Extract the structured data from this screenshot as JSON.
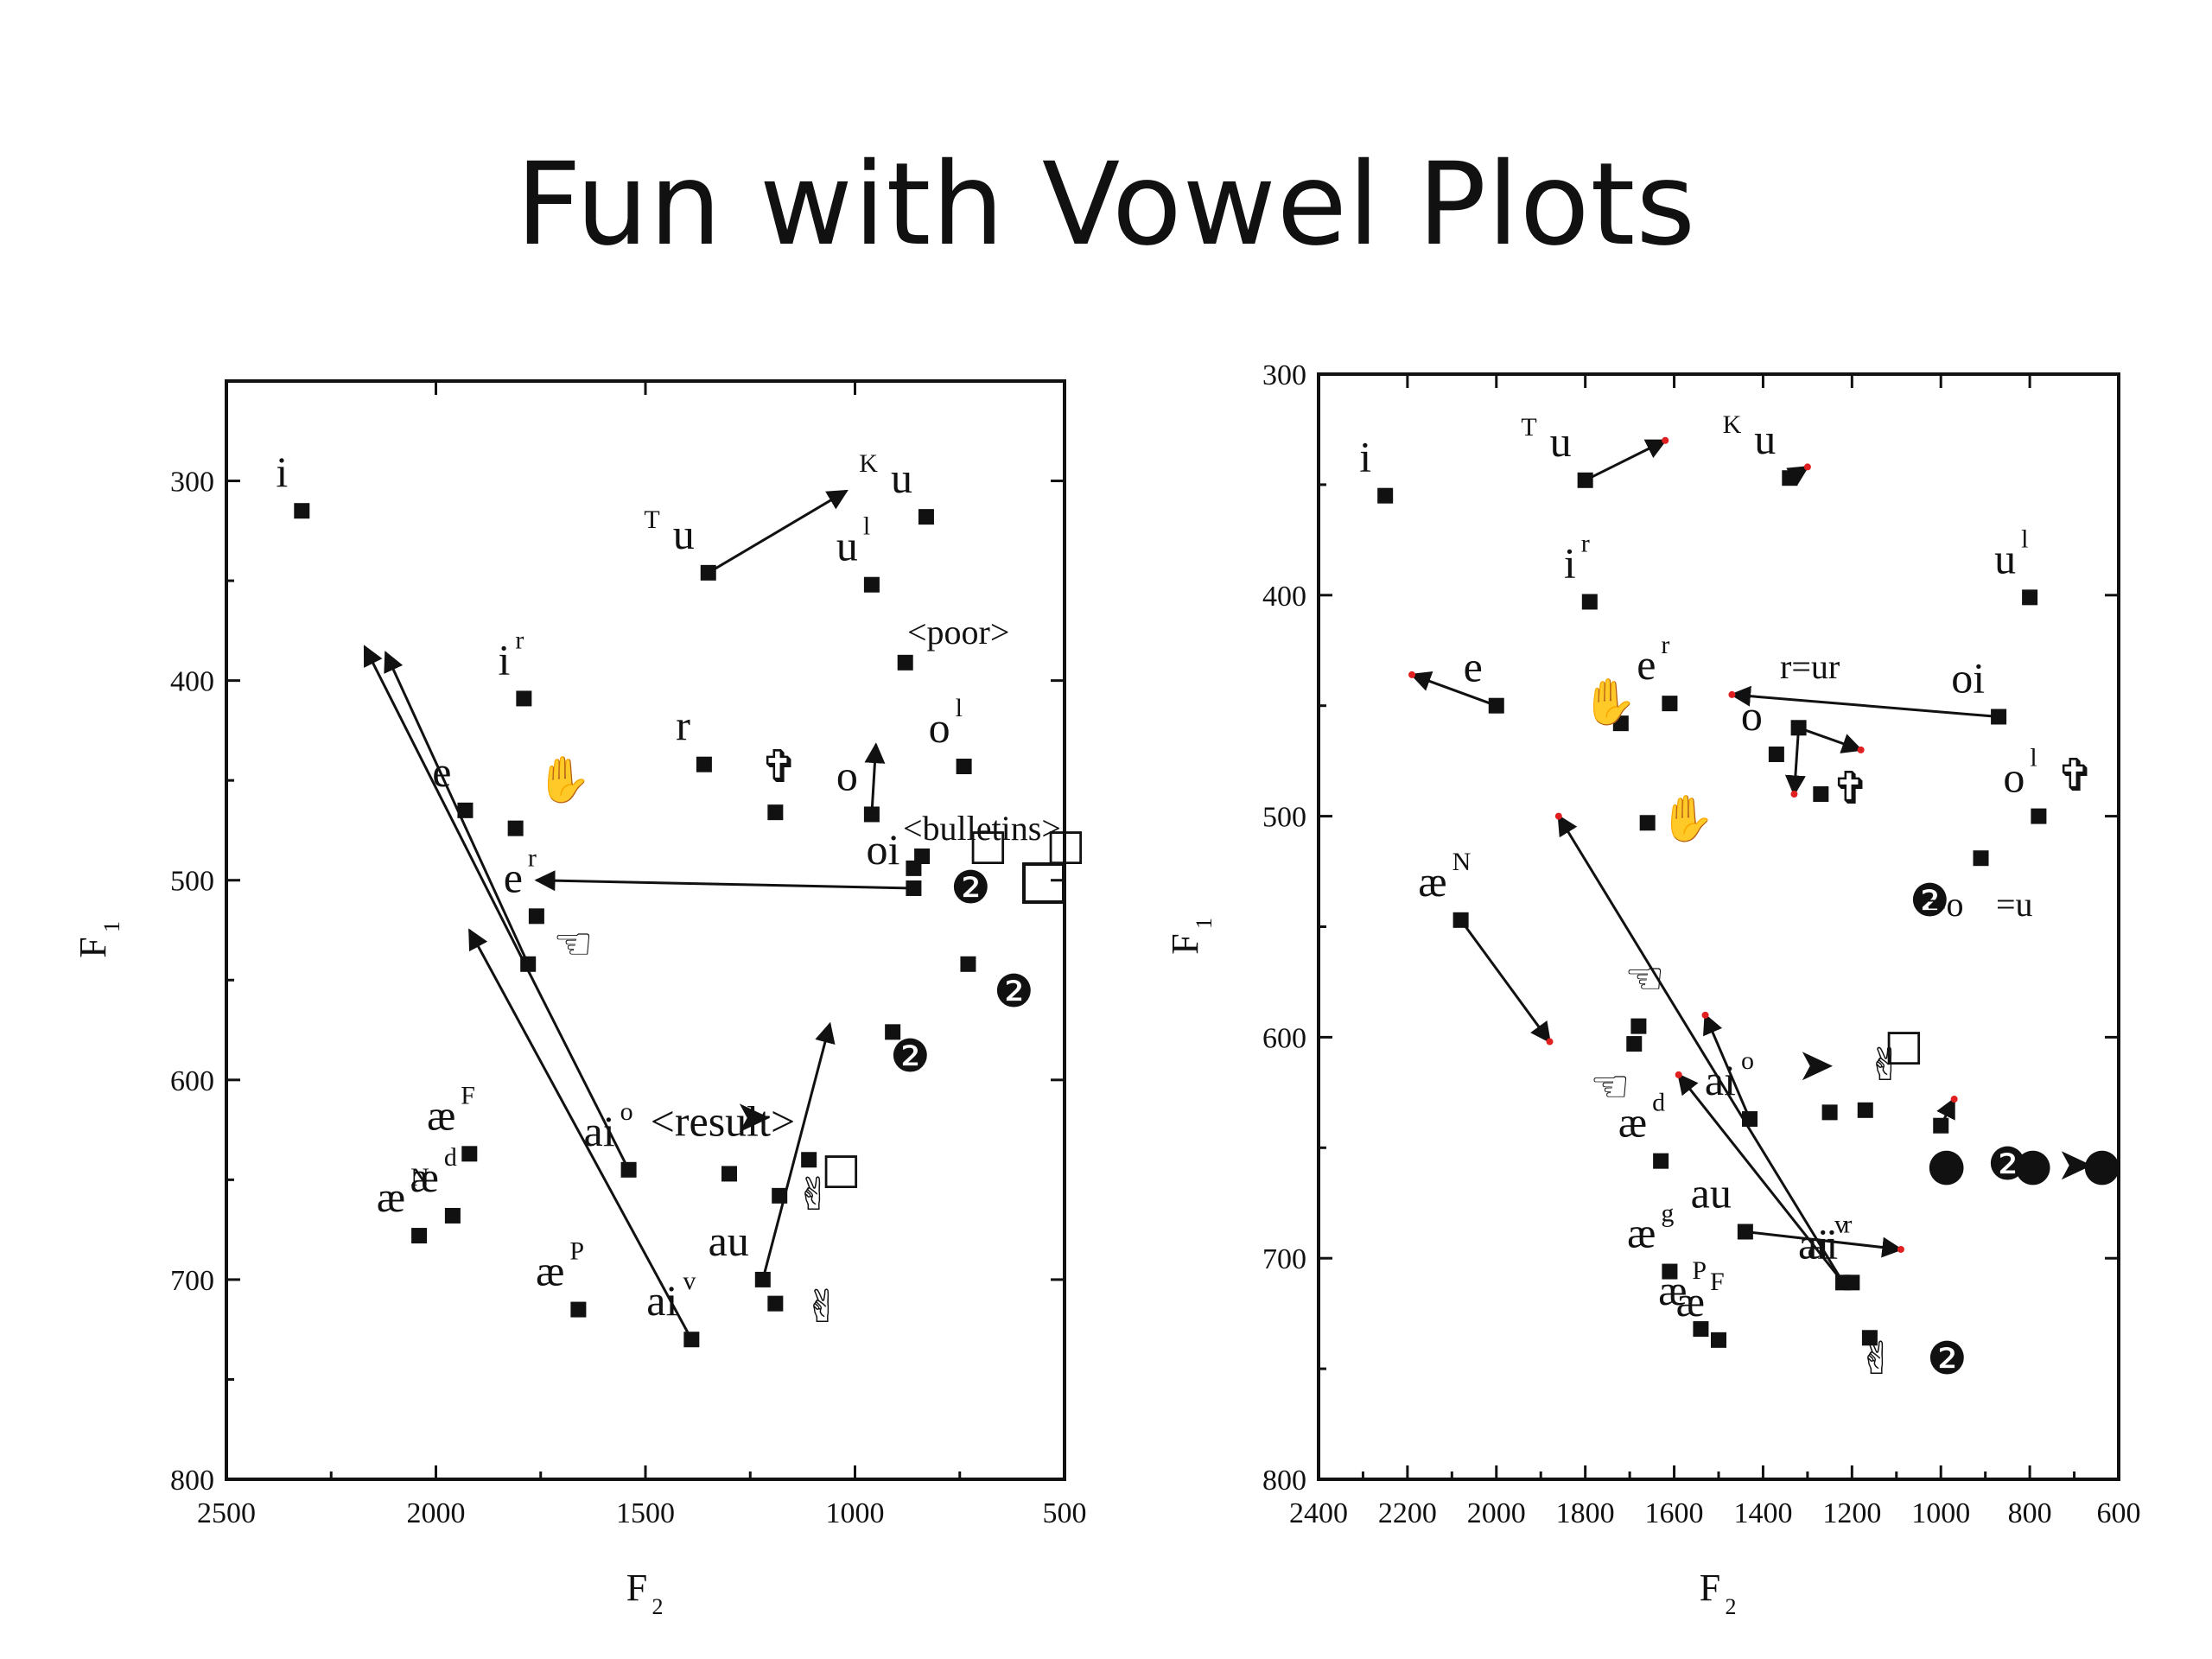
{
  "slide": {
    "title": "Fun with Vowel Plots"
  },
  "chart_data": [
    {
      "type": "scatter",
      "xlabel": "F",
      "xlabel_sub": "2",
      "ylabel": "F",
      "ylabel_sub": "1",
      "xlim": [
        2500,
        500
      ],
      "ylim": [
        250,
        800
      ],
      "xticks": [
        2500,
        2000,
        1500,
        1000,
        500
      ],
      "yticks": [
        300,
        400,
        500,
        600,
        700,
        800
      ],
      "points": [
        {
          "x": 2320,
          "y": 315,
          "label": "i",
          "sup": ""
        },
        {
          "x": 1350,
          "y": 346,
          "label": "u",
          "pre": "T"
        },
        {
          "x": 830,
          "y": 318,
          "label": "u",
          "pre": "K"
        },
        {
          "x": 960,
          "y": 352,
          "label": "u",
          "sup": "l"
        },
        {
          "x": 880,
          "y": 391,
          "label": "",
          "sup": ""
        },
        {
          "x": 1790,
          "y": 409,
          "label": "i",
          "sup": "r"
        },
        {
          "x": 1360,
          "y": 442,
          "label": "r"
        },
        {
          "x": 1190,
          "y": 466,
          "label": ""
        },
        {
          "x": 960,
          "y": 467,
          "label": "o"
        },
        {
          "x": 740,
          "y": 443,
          "label": "o",
          "sup": "l"
        },
        {
          "x": 1930,
          "y": 465,
          "label": "e"
        },
        {
          "x": 1810,
          "y": 474,
          "label": ""
        },
        {
          "x": 1760,
          "y": 518,
          "label": "e",
          "sup": "r"
        },
        {
          "x": 1780,
          "y": 542,
          "label": ""
        },
        {
          "x": 860,
          "y": 494,
          "label": ""
        },
        {
          "x": 840,
          "y": 488,
          "label": ""
        },
        {
          "x": 860,
          "y": 504,
          "label": "oi"
        },
        {
          "x": 730,
          "y": 542,
          "label": ""
        },
        {
          "x": 910,
          "y": 576,
          "label": ""
        },
        {
          "x": 1920,
          "y": 637,
          "label": "æ",
          "sup": "F"
        },
        {
          "x": 1540,
          "y": 645,
          "label": "ai",
          "sup": "o"
        },
        {
          "x": 1300,
          "y": 647,
          "label": ""
        },
        {
          "x": 1180,
          "y": 658,
          "label": ""
        },
        {
          "x": 1110,
          "y": 640,
          "label": "<result>"
        },
        {
          "x": 1960,
          "y": 668,
          "label": "æ",
          "sup": "d"
        },
        {
          "x": 2040,
          "y": 678,
          "label": "æ",
          "sup": "N"
        },
        {
          "x": 1220,
          "y": 700,
          "label": "au"
        },
        {
          "x": 1190,
          "y": 712,
          "label": ""
        },
        {
          "x": 1660,
          "y": 715,
          "label": "æ",
          "sup": "P"
        },
        {
          "x": 1390,
          "y": 730,
          "label": "ai",
          "sup": "v"
        }
      ],
      "arrows": [
        {
          "from": [
            1350,
            346
          ],
          "to": [
            1020,
            305
          ]
        },
        {
          "from": [
            1540,
            645
          ],
          "to": [
            2170,
            383
          ]
        },
        {
          "from": [
            1780,
            542
          ],
          "to": [
            2120,
            386
          ]
        },
        {
          "from": [
            1390,
            730
          ],
          "to": [
            1920,
            525
          ]
        },
        {
          "from": [
            860,
            504
          ],
          "to": [
            1760,
            500
          ]
        },
        {
          "from": [
            1220,
            700
          ],
          "to": [
            1060,
            572
          ]
        },
        {
          "from": [
            960,
            467
          ],
          "to": [
            950,
            432
          ]
        }
      ],
      "notes": [
        "<poor>",
        "<bulletins>"
      ]
    },
    {
      "type": "scatter",
      "xlabel": "F",
      "xlabel_sub": "2",
      "ylabel": "F",
      "ylabel_sub": "1",
      "xlim": [
        2400,
        600
      ],
      "ylim": [
        300,
        800
      ],
      "xticks": [
        2400,
        2200,
        2000,
        1800,
        1600,
        1400,
        1200,
        1000,
        800,
        600
      ],
      "yticks": [
        300,
        400,
        500,
        600,
        700,
        800
      ],
      "points": [
        {
          "x": 2250,
          "y": 355,
          "label": "i"
        },
        {
          "x": 1800,
          "y": 348,
          "label": "u",
          "pre": "T"
        },
        {
          "x": 1340,
          "y": 347,
          "label": "u",
          "pre": "K"
        },
        {
          "x": 800,
          "y": 401,
          "label": "u",
          "sup": "l"
        },
        {
          "x": 1790,
          "y": 403,
          "label": "i",
          "sup": "r"
        },
        {
          "x": 2000,
          "y": 450,
          "label": "e"
        },
        {
          "x": 1610,
          "y": 449,
          "label": "e",
          "sup": "r"
        },
        {
          "x": 1720,
          "y": 458,
          "label": ""
        },
        {
          "x": 1320,
          "y": 460,
          "label": ""
        },
        {
          "x": 1370,
          "y": 472,
          "label": "o"
        },
        {
          "x": 1270,
          "y": 490,
          "label": ""
        },
        {
          "x": 870,
          "y": 455,
          "label": "oi"
        },
        {
          "x": 780,
          "y": 500,
          "label": "o",
          "sup": "l"
        },
        {
          "x": 1660,
          "y": 503,
          "label": ""
        },
        {
          "x": 910,
          "y": 519,
          "label": ""
        },
        {
          "x": 2080,
          "y": 547,
          "label": "æ",
          "sup": "N"
        },
        {
          "x": 1680,
          "y": 595,
          "label": ""
        },
        {
          "x": 1690,
          "y": 603,
          "label": ""
        },
        {
          "x": 1430,
          "y": 637,
          "label": "ai",
          "sup": "o"
        },
        {
          "x": 1250,
          "y": 634,
          "label": ""
        },
        {
          "x": 1170,
          "y": 633,
          "label": ""
        },
        {
          "x": 1000,
          "y": 640,
          "label": ""
        },
        {
          "x": 1630,
          "y": 656,
          "label": "æ",
          "sup": "d"
        },
        {
          "x": 1440,
          "y": 688,
          "label": "au"
        },
        {
          "x": 1610,
          "y": 706,
          "label": "æ",
          "sup": "g"
        },
        {
          "x": 1220,
          "y": 711,
          "label": "ai",
          "sup": "v"
        },
        {
          "x": 1200,
          "y": 711,
          "label": "ai",
          "sup": "r"
        },
        {
          "x": 1540,
          "y": 732,
          "label": "æ",
          "sup": "P"
        },
        {
          "x": 1500,
          "y": 737,
          "label": "æ",
          "sup": "F"
        },
        {
          "x": 1160,
          "y": 736,
          "label": ""
        }
      ],
      "arrows": [
        {
          "from": [
            1800,
            348
          ],
          "to": [
            1620,
            330
          ]
        },
        {
          "from": [
            1340,
            347
          ],
          "to": [
            1300,
            342
          ]
        },
        {
          "from": [
            2000,
            450
          ],
          "to": [
            2190,
            436
          ]
        },
        {
          "from": [
            870,
            455
          ],
          "to": [
            1470,
            445
          ]
        },
        {
          "from": [
            1320,
            460
          ],
          "to": [
            1330,
            490
          ]
        },
        {
          "from": [
            1320,
            460
          ],
          "to": [
            1180,
            470
          ]
        },
        {
          "from": [
            2080,
            547
          ],
          "to": [
            1880,
            602
          ]
        },
        {
          "from": [
            1430,
            637
          ],
          "to": [
            1530,
            590
          ]
        },
        {
          "from": [
            1220,
            711
          ],
          "to": [
            1860,
            500
          ]
        },
        {
          "from": [
            1220,
            711
          ],
          "to": [
            1590,
            617
          ]
        },
        {
          "from": [
            1440,
            688
          ],
          "to": [
            1090,
            696
          ]
        },
        {
          "from": [
            1000,
            640
          ],
          "to": [
            970,
            628
          ]
        }
      ],
      "notes": [
        "r=ur",
        "=o",
        "=u"
      ]
    }
  ]
}
